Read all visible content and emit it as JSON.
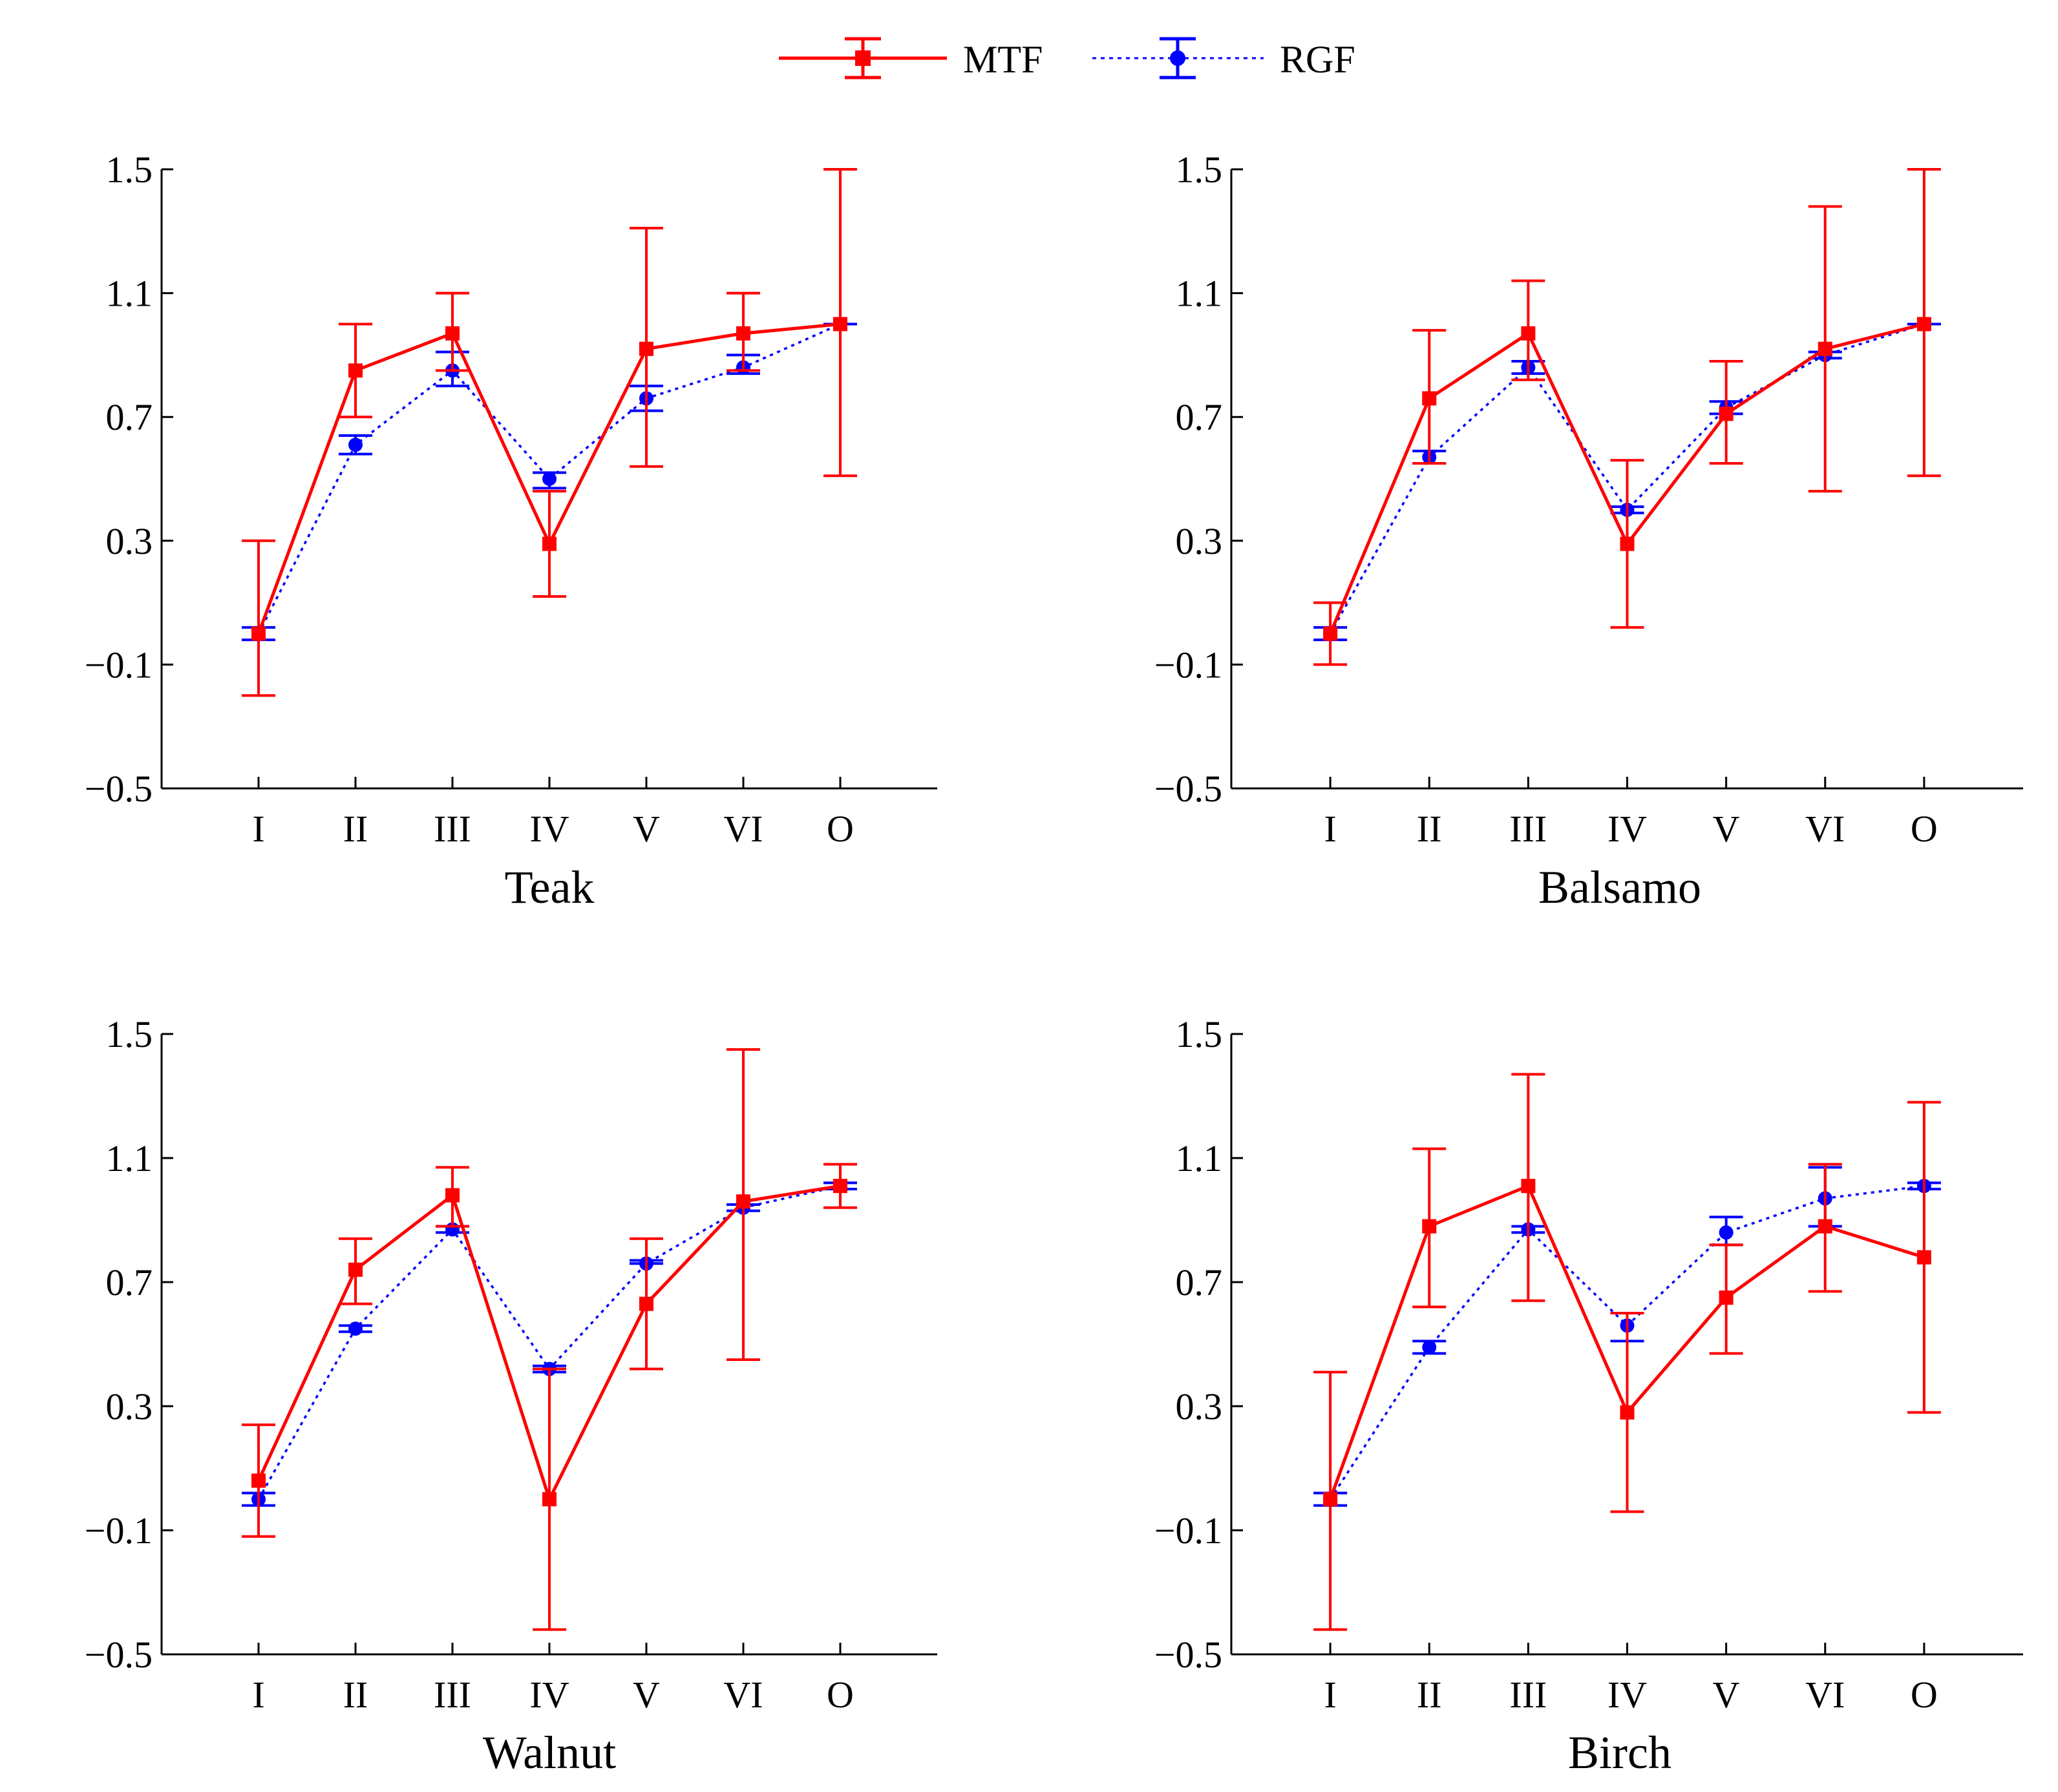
{
  "legend": {
    "mtf_label": "MTF",
    "rgf_label": "RGF"
  },
  "colors": {
    "mtf": "#ff0000",
    "rgf": "#0000ff",
    "axis": "#000000"
  },
  "chart_data": [
    {
      "type": "line",
      "xlabel": "Teak",
      "categories": [
        "I",
        "II",
        "III",
        "IV",
        "V",
        "VI",
        "O"
      ],
      "ylim": [
        -0.5,
        1.5
      ],
      "yticks": [
        "1.5",
        "1.1",
        "0.7",
        "0.3",
        "−0.1",
        "−0.5"
      ],
      "ytick_values": [
        1.5,
        1.1,
        0.7,
        0.3,
        -0.1,
        -0.5
      ],
      "series": [
        {
          "name": "MTF",
          "values": [
            0.0,
            0.85,
            0.97,
            0.29,
            0.92,
            0.97,
            1.0
          ],
          "err_low": [
            -0.2,
            0.7,
            0.85,
            0.12,
            0.54,
            0.85,
            0.51
          ],
          "err_high": [
            0.3,
            1.0,
            1.1,
            0.46,
            1.31,
            1.1,
            1.5
          ]
        },
        {
          "name": "RGF",
          "values": [
            0.0,
            0.61,
            0.85,
            0.5,
            0.76,
            0.86,
            1.0
          ],
          "err_low": [
            -0.02,
            0.58,
            0.8,
            0.47,
            0.72,
            0.84,
            1.0
          ],
          "err_high": [
            0.02,
            0.64,
            0.91,
            0.52,
            0.8,
            0.9,
            1.0
          ]
        }
      ]
    },
    {
      "type": "line",
      "xlabel": "Balsamo",
      "categories": [
        "I",
        "II",
        "III",
        "IV",
        "V",
        "VI",
        "O"
      ],
      "ylim": [
        -0.5,
        1.5
      ],
      "yticks": [
        "1.5",
        "1.1",
        "0.7",
        "0.3",
        "−0.1",
        "−0.5"
      ],
      "ytick_values": [
        1.5,
        1.1,
        0.7,
        0.3,
        -0.1,
        -0.5
      ],
      "series": [
        {
          "name": "MTF",
          "values": [
            0.0,
            0.76,
            0.97,
            0.29,
            0.71,
            0.92,
            1.0
          ],
          "err_low": [
            -0.1,
            0.55,
            0.82,
            0.02,
            0.55,
            0.46,
            0.51
          ],
          "err_high": [
            0.1,
            0.98,
            1.14,
            0.56,
            0.88,
            1.38,
            1.5
          ]
        },
        {
          "name": "RGF",
          "values": [
            0.0,
            0.57,
            0.86,
            0.4,
            0.73,
            0.9,
            1.0
          ],
          "err_low": [
            -0.02,
            0.55,
            0.84,
            0.39,
            0.71,
            0.89,
            1.0
          ],
          "err_high": [
            0.02,
            0.59,
            0.88,
            0.41,
            0.75,
            0.91,
            1.0
          ]
        }
      ]
    },
    {
      "type": "line",
      "xlabel": "Walnut",
      "categories": [
        "I",
        "II",
        "III",
        "IV",
        "V",
        "VI",
        "O"
      ],
      "ylim": [
        -0.5,
        1.5
      ],
      "yticks": [
        "1.5",
        "1.1",
        "0.7",
        "0.3",
        "−0.1",
        "−0.5"
      ],
      "ytick_values": [
        1.5,
        1.1,
        0.7,
        0.3,
        -0.1,
        -0.5
      ],
      "series": [
        {
          "name": "MTF",
          "values": [
            0.06,
            0.74,
            0.98,
            0.0,
            0.63,
            0.96,
            1.01
          ],
          "err_low": [
            -0.12,
            0.63,
            0.88,
            -0.42,
            0.42,
            0.45,
            0.94
          ],
          "err_high": [
            0.24,
            0.84,
            1.07,
            0.42,
            0.84,
            1.45,
            1.08
          ]
        },
        {
          "name": "RGF",
          "values": [
            0.0,
            0.55,
            0.87,
            0.42,
            0.76,
            0.94,
            1.01
          ],
          "err_low": [
            -0.02,
            0.54,
            0.86,
            0.41,
            0.76,
            0.93,
            1.0
          ],
          "err_high": [
            0.02,
            0.56,
            0.88,
            0.43,
            0.77,
            0.95,
            1.02
          ]
        }
      ]
    },
    {
      "type": "line",
      "xlabel": "Birch",
      "categories": [
        "I",
        "II",
        "III",
        "IV",
        "V",
        "VI",
        "O"
      ],
      "ylim": [
        -0.5,
        1.5
      ],
      "yticks": [
        "1.5",
        "1.1",
        "0.7",
        "0.3",
        "−0.1",
        "−0.5"
      ],
      "ytick_values": [
        1.5,
        1.1,
        0.7,
        0.3,
        -0.1,
        -0.5
      ],
      "series": [
        {
          "name": "MTF",
          "values": [
            0.0,
            0.88,
            1.01,
            0.28,
            0.65,
            0.88,
            0.78
          ],
          "err_low": [
            -0.42,
            0.62,
            0.64,
            -0.04,
            0.47,
            0.67,
            0.28
          ],
          "err_high": [
            0.41,
            1.13,
            1.37,
            0.6,
            0.82,
            1.08,
            1.28
          ]
        },
        {
          "name": "RGF",
          "values": [
            0.0,
            0.49,
            0.87,
            0.56,
            0.86,
            0.97,
            1.01
          ],
          "err_low": [
            -0.02,
            0.47,
            0.86,
            0.51,
            0.82,
            0.88,
            1.0
          ],
          "err_high": [
            0.02,
            0.51,
            0.88,
            0.6,
            0.91,
            1.07,
            1.02
          ]
        }
      ]
    }
  ]
}
